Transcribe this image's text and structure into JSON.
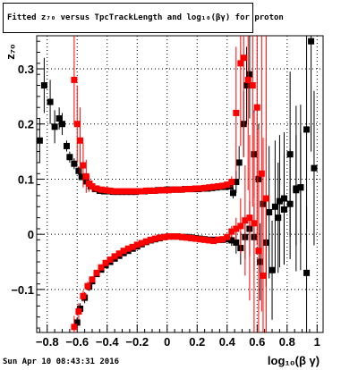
{
  "title": "Fitted  z₇₀ versus TpcTrackLength and log₁₀(βγ) for proton",
  "footer": "Sun Apr 10 08:43:31 2016",
  "colors": {
    "series_black": "#000000",
    "series_red": "#ff0000",
    "axis": "#000000"
  },
  "chart_data": {
    "type": "scatter",
    "xlabel": "log₁₀(β γ)",
    "ylabel": "z₇₀",
    "xlim": [
      -0.87,
      1.04
    ],
    "ylim": [
      -0.178,
      0.36
    ],
    "x_ticks": [
      -0.8,
      -0.6,
      -0.4,
      -0.2,
      0,
      0.2,
      0.4,
      0.6,
      0.8,
      1
    ],
    "x_tick_labels": [
      "−0.8",
      "−0.6",
      "−0.4",
      "−0.2",
      "0",
      "0.2",
      "0.4",
      "0.6",
      "0.8",
      "1"
    ],
    "y_ticks": [
      -0.1,
      0,
      0.1,
      0.2,
      0.3
    ],
    "y_tick_labels": [
      "−0.1",
      "0",
      "0.1",
      "0.2",
      "0.3"
    ],
    "grid": true,
    "series": [
      {
        "color": "#000000",
        "marker": "square",
        "points": [
          [
            -0.85,
            0.17,
            0.04
          ],
          [
            -0.82,
            0.27,
            0.05
          ],
          [
            -0.78,
            0.24,
            0.04
          ],
          [
            -0.75,
            0.195,
            0.03
          ],
          [
            -0.72,
            0.21,
            0.02
          ],
          [
            -0.7,
            0.2,
            0.02
          ],
          [
            -0.67,
            0.16,
            0.01
          ],
          [
            -0.65,
            0.14,
            0.01
          ],
          [
            -0.62,
            0.128,
            0.01
          ],
          [
            -0.59,
            0.115,
            0.008
          ],
          [
            -0.57,
            0.104,
            0.006
          ],
          [
            -0.54,
            0.096,
            0
          ],
          [
            -0.51,
            0.087,
            0
          ],
          [
            -0.48,
            0.082,
            0
          ],
          [
            -0.45,
            0.079,
            0
          ],
          [
            -0.42,
            0.078,
            0
          ],
          [
            -0.39,
            0.078,
            0
          ],
          [
            -0.36,
            0.077,
            0
          ],
          [
            -0.33,
            0.077,
            0
          ],
          [
            -0.3,
            0.077,
            0
          ],
          [
            -0.27,
            0.077,
            0
          ],
          [
            -0.24,
            0.077,
            0
          ],
          [
            -0.21,
            0.077,
            0
          ],
          [
            -0.18,
            0.078,
            0
          ],
          [
            -0.15,
            0.078,
            0
          ],
          [
            -0.12,
            0.079,
            0
          ],
          [
            -0.09,
            0.079,
            0
          ],
          [
            -0.06,
            0.08,
            0
          ],
          [
            -0.03,
            0.08,
            0
          ],
          [
            0.0,
            0.081,
            0
          ],
          [
            0.03,
            0.081,
            0
          ],
          [
            0.06,
            0.081,
            0
          ],
          [
            0.09,
            0.081,
            0
          ],
          [
            0.12,
            0.082,
            0
          ],
          [
            0.15,
            0.082,
            0
          ],
          [
            0.18,
            0.082,
            0
          ],
          [
            0.21,
            0.082,
            0
          ],
          [
            0.24,
            0.083,
            0
          ],
          [
            0.27,
            0.083,
            0
          ],
          [
            0.3,
            0.084,
            0
          ],
          [
            0.33,
            0.085,
            0
          ],
          [
            0.36,
            0.086,
            0
          ],
          [
            0.39,
            0.086,
            0
          ],
          [
            0.42,
            0.087,
            0
          ],
          [
            0.44,
            0.075,
            0.01
          ],
          [
            0.46,
            0.095,
            0.02
          ],
          [
            0.48,
            0.13,
            0.03
          ],
          [
            0.51,
            0.2,
            0.06
          ],
          [
            0.53,
            0.27,
            0.07
          ],
          [
            0.55,
            0.29,
            0.08
          ],
          [
            0.58,
            0.145,
            0.08
          ],
          [
            0.61,
            0.1,
            0.1
          ],
          [
            0.64,
            0.055,
            0.1
          ],
          [
            0.68,
            0.04,
            0.12
          ],
          [
            0.72,
            0.05,
            0.12
          ],
          [
            0.75,
            0.06,
            0.12
          ],
          [
            0.78,
            0.065,
            0.12
          ],
          [
            0.82,
            0.145,
            0.15
          ],
          [
            0.86,
            0.083,
            0.15
          ],
          [
            0.89,
            0.085,
            0.15
          ],
          [
            0.93,
            0.19,
            0.18
          ],
          [
            0.96,
            0.35,
            0.2
          ],
          [
            -0.6,
            -0.16,
            0.01
          ],
          [
            -0.58,
            -0.135,
            0.01
          ],
          [
            -0.55,
            -0.115,
            0.01
          ],
          [
            -0.52,
            -0.095,
            0.008
          ],
          [
            -0.5,
            -0.085,
            0.006
          ],
          [
            -0.47,
            -0.072,
            0
          ],
          [
            -0.44,
            -0.064,
            0
          ],
          [
            -0.41,
            -0.056,
            0
          ],
          [
            -0.38,
            -0.05,
            0
          ],
          [
            -0.35,
            -0.044,
            0
          ],
          [
            -0.32,
            -0.039,
            0
          ],
          [
            -0.29,
            -0.034,
            0
          ],
          [
            -0.26,
            -0.03,
            0
          ],
          [
            -0.23,
            -0.026,
            0
          ],
          [
            -0.2,
            -0.022,
            0
          ],
          [
            -0.17,
            -0.018,
            0
          ],
          [
            -0.14,
            -0.014,
            0
          ],
          [
            -0.11,
            -0.011,
            0
          ],
          [
            -0.08,
            -0.009,
            0
          ],
          [
            -0.05,
            -0.007,
            0
          ],
          [
            -0.02,
            -0.005,
            0
          ],
          [
            0.01,
            -0.004,
            0
          ],
          [
            0.04,
            -0.004,
            0
          ],
          [
            0.07,
            -0.004,
            0
          ],
          [
            0.1,
            -0.005,
            0
          ],
          [
            0.13,
            -0.005,
            0
          ],
          [
            0.16,
            -0.006,
            0
          ],
          [
            0.19,
            -0.007,
            0
          ],
          [
            0.22,
            -0.008,
            0
          ],
          [
            0.25,
            -0.009,
            0
          ],
          [
            0.28,
            -0.01,
            0
          ],
          [
            0.31,
            -0.01,
            0
          ],
          [
            0.34,
            -0.01,
            0
          ],
          [
            0.37,
            -0.01,
            0
          ],
          [
            0.4,
            -0.009,
            0
          ],
          [
            0.43,
            -0.011,
            0.01
          ],
          [
            0.46,
            -0.015,
            0.02
          ],
          [
            0.49,
            -0.025,
            0.03
          ],
          [
            0.52,
            -0.005,
            0.04
          ],
          [
            0.55,
            0.01,
            0.05
          ],
          [
            0.58,
            -0.005,
            0.06
          ],
          [
            0.62,
            -0.05,
            0.07
          ],
          [
            0.66,
            -0.015,
            0.08
          ],
          [
            0.7,
            -0.065,
            0.09
          ],
          [
            0.74,
            0.03,
            0.1
          ],
          [
            0.78,
            0.045,
            0.1
          ],
          [
            0.82,
            0.055,
            0.1
          ],
          [
            0.86,
            0.08,
            0.1
          ],
          [
            0.89,
            0.085,
            0.1
          ],
          [
            0.93,
            -0.07,
            0.12
          ],
          [
            0.98,
            0.12,
            0.14
          ]
        ]
      },
      {
        "color": "#ff0000",
        "marker": "square",
        "points": [
          [
            -0.62,
            0.28,
            0.08
          ],
          [
            -0.6,
            0.2,
            0.07
          ],
          [
            -0.58,
            0.17,
            0.06
          ],
          [
            -0.56,
            0.125,
            0.04
          ],
          [
            -0.54,
            0.105,
            0.03
          ],
          [
            -0.52,
            0.092,
            0.015
          ],
          [
            -0.5,
            0.087,
            0.01
          ],
          [
            -0.47,
            0.083,
            0.005
          ],
          [
            -0.44,
            0.081,
            0
          ],
          [
            -0.41,
            0.08,
            0
          ],
          [
            -0.38,
            0.079,
            0
          ],
          [
            -0.35,
            0.078,
            0
          ],
          [
            -0.32,
            0.078,
            0
          ],
          [
            -0.29,
            0.078,
            0
          ],
          [
            -0.26,
            0.078,
            0
          ],
          [
            -0.23,
            0.078,
            0
          ],
          [
            -0.2,
            0.078,
            0
          ],
          [
            -0.17,
            0.078,
            0
          ],
          [
            -0.14,
            0.079,
            0
          ],
          [
            -0.11,
            0.079,
            0
          ],
          [
            -0.08,
            0.079,
            0
          ],
          [
            -0.05,
            0.08,
            0
          ],
          [
            -0.02,
            0.08,
            0
          ],
          [
            0.01,
            0.08,
            0
          ],
          [
            0.04,
            0.081,
            0
          ],
          [
            0.07,
            0.081,
            0
          ],
          [
            0.1,
            0.081,
            0
          ],
          [
            0.13,
            0.082,
            0
          ],
          [
            0.16,
            0.082,
            0
          ],
          [
            0.19,
            0.083,
            0
          ],
          [
            0.22,
            0.083,
            0
          ],
          [
            0.25,
            0.084,
            0
          ],
          [
            0.28,
            0.085,
            0
          ],
          [
            0.31,
            0.086,
            0
          ],
          [
            0.34,
            0.087,
            0
          ],
          [
            0.37,
            0.088,
            0
          ],
          [
            0.4,
            0.09,
            0.005
          ],
          [
            0.43,
            0.095,
            0.01
          ],
          [
            0.46,
            0.22,
            0.12
          ],
          [
            0.49,
            0.31,
            0.15
          ],
          [
            0.51,
            0.32,
            0.18
          ],
          [
            0.54,
            0.28,
            0.2
          ],
          [
            0.57,
            0.27,
            0.22
          ],
          [
            0.6,
            0.23,
            0.25
          ],
          [
            0.63,
            0.11,
            0.25
          ],
          [
            0.66,
            0.065,
            0.3
          ],
          [
            -0.62,
            -0.168,
            0.02
          ],
          [
            -0.59,
            -0.14,
            0.015
          ],
          [
            -0.56,
            -0.112,
            0.01
          ],
          [
            -0.53,
            -0.094,
            0.008
          ],
          [
            -0.5,
            -0.082,
            0.006
          ],
          [
            -0.47,
            -0.07,
            0
          ],
          [
            -0.44,
            -0.06,
            0
          ],
          [
            -0.41,
            -0.052,
            0
          ],
          [
            -0.38,
            -0.046,
            0
          ],
          [
            -0.35,
            -0.04,
            0
          ],
          [
            -0.32,
            -0.035,
            0
          ],
          [
            -0.29,
            -0.03,
            0
          ],
          [
            -0.26,
            -0.026,
            0
          ],
          [
            -0.23,
            -0.023,
            0
          ],
          [
            -0.2,
            -0.019,
            0
          ],
          [
            -0.17,
            -0.016,
            0
          ],
          [
            -0.14,
            -0.013,
            0
          ],
          [
            -0.11,
            -0.01,
            0
          ],
          [
            -0.08,
            -0.008,
            0
          ],
          [
            -0.05,
            -0.006,
            0
          ],
          [
            -0.02,
            -0.005,
            0
          ],
          [
            0.01,
            -0.004,
            0
          ],
          [
            0.04,
            -0.004,
            0
          ],
          [
            0.07,
            -0.004,
            0
          ],
          [
            0.1,
            -0.005,
            0
          ],
          [
            0.13,
            -0.006,
            0
          ],
          [
            0.16,
            -0.007,
            0
          ],
          [
            0.19,
            -0.008,
            0
          ],
          [
            0.22,
            -0.009,
            0
          ],
          [
            0.25,
            -0.01,
            0
          ],
          [
            0.28,
            -0.011,
            0
          ],
          [
            0.31,
            -0.012,
            0
          ],
          [
            0.34,
            -0.01,
            0
          ],
          [
            0.37,
            -0.009,
            0
          ],
          [
            0.4,
            -0.005,
            0.005
          ],
          [
            0.43,
            0.005,
            0.01
          ],
          [
            0.46,
            0.01,
            0.02
          ],
          [
            0.49,
            0.015,
            0.05
          ],
          [
            0.52,
            0.025,
            0.1
          ],
          [
            0.55,
            0.03,
            0.15
          ],
          [
            0.58,
            0.02,
            0.2
          ],
          [
            0.61,
            -0.03,
            0.22
          ],
          [
            0.64,
            -0.075,
            0.25
          ]
        ]
      }
    ]
  }
}
